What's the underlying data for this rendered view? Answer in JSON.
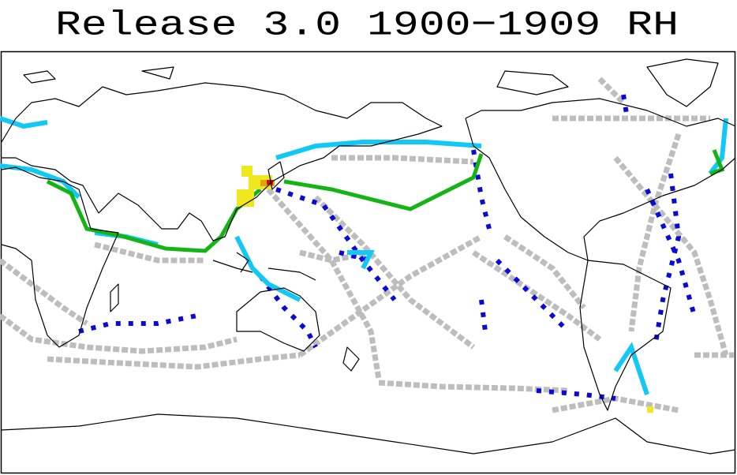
{
  "title": "Release 3.0 1900−1909 RH"
}
